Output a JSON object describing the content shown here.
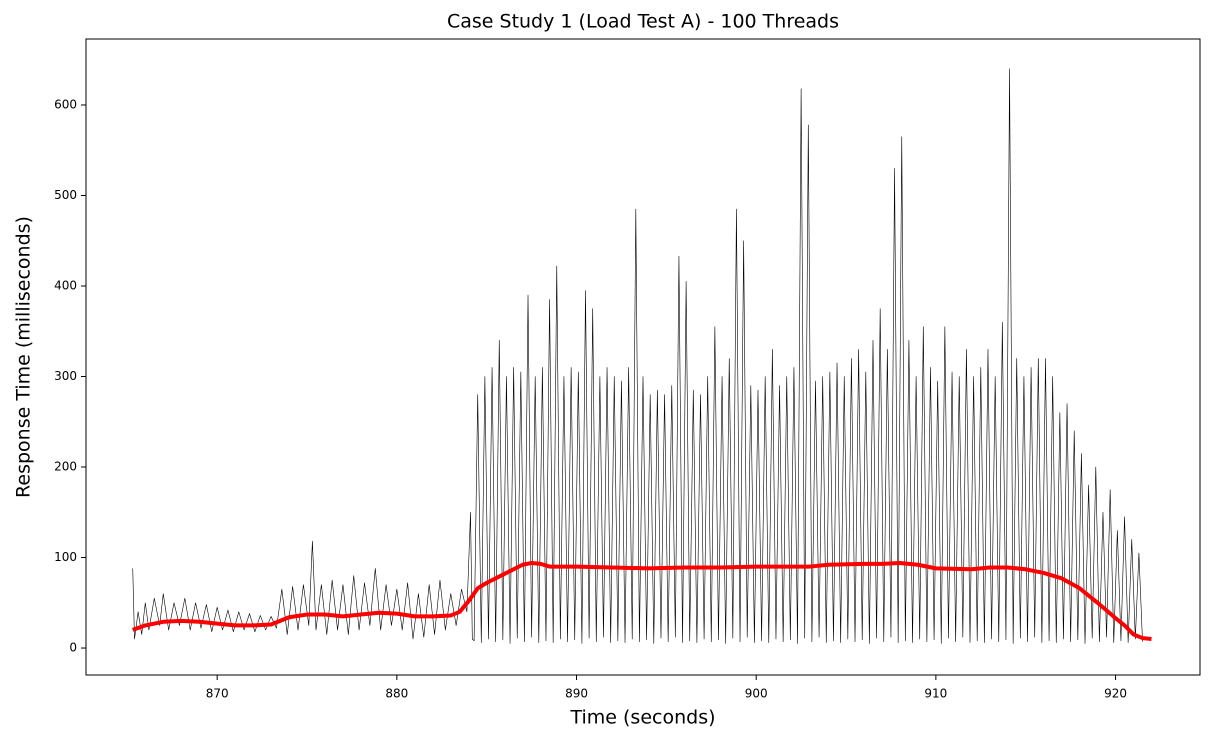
{
  "chart_data": {
    "type": "line",
    "title": "Case Study 1 (Load Test A) - 100 Threads",
    "xlabel": "Time (seconds)",
    "ylabel": "Response Time (milliseconds)",
    "xlim": [
      862.7,
      924.7
    ],
    "ylim": [
      -29.8,
      672.9
    ],
    "xticks": [
      870,
      880,
      890,
      900,
      910,
      920
    ],
    "yticks": [
      0,
      100,
      200,
      300,
      400,
      500,
      600
    ],
    "series": [
      {
        "color": "#000000",
        "x": [
          865.3,
          865.4,
          865.6,
          865.8,
          866.0,
          866.2,
          866.5,
          866.8,
          867.0,
          867.3,
          867.6,
          867.9,
          868.2,
          868.5,
          868.8,
          869.1,
          869.4,
          869.7,
          870.0,
          870.3,
          870.6,
          870.9,
          871.2,
          871.5,
          871.8,
          872.1,
          872.4,
          872.7,
          873.0,
          873.3,
          873.6,
          873.9,
          874.2,
          874.5,
          874.8,
          875.1,
          875.3,
          875.5,
          875.8,
          876.1,
          876.4,
          876.7,
          877.0,
          877.3,
          877.6,
          877.9,
          878.2,
          878.5,
          878.8,
          879.1,
          879.4,
          879.7,
          880.0,
          880.3,
          880.6,
          880.9,
          881.2,
          881.5,
          881.8,
          882.1,
          882.4,
          882.7,
          883.0,
          883.3,
          883.6,
          883.9,
          884.1,
          884.2,
          884.3,
          884.5,
          884.7,
          884.9,
          885.1,
          885.3,
          885.5,
          885.7,
          885.9,
          886.1,
          886.3,
          886.5,
          886.7,
          886.9,
          887.1,
          887.3,
          887.5,
          887.7,
          887.9,
          888.1,
          888.3,
          888.5,
          888.7,
          888.9,
          889.1,
          889.3,
          889.5,
          889.7,
          889.9,
          890.1,
          890.3,
          890.5,
          890.7,
          890.9,
          891.1,
          891.3,
          891.5,
          891.7,
          891.9,
          892.1,
          892.3,
          892.5,
          892.7,
          892.9,
          893.1,
          893.3,
          893.5,
          893.7,
          893.9,
          894.1,
          894.3,
          894.5,
          894.7,
          894.9,
          895.1,
          895.3,
          895.5,
          895.7,
          895.9,
          896.1,
          896.3,
          896.5,
          896.7,
          896.9,
          897.1,
          897.3,
          897.5,
          897.7,
          897.9,
          898.1,
          898.3,
          898.5,
          898.7,
          898.9,
          899.1,
          899.3,
          899.5,
          899.7,
          899.9,
          900.1,
          900.3,
          900.5,
          900.7,
          900.9,
          901.1,
          901.3,
          901.5,
          901.7,
          901.9,
          902.1,
          902.3,
          902.5,
          902.7,
          902.9,
          903.1,
          903.3,
          903.5,
          903.7,
          903.9,
          904.1,
          904.3,
          904.5,
          904.7,
          904.9,
          905.1,
          905.3,
          905.5,
          905.7,
          905.9,
          906.1,
          906.3,
          906.5,
          906.7,
          906.9,
          907.1,
          907.3,
          907.5,
          907.7,
          907.9,
          908.1,
          908.3,
          908.5,
          908.7,
          908.9,
          909.1,
          909.3,
          909.5,
          909.7,
          909.9,
          910.1,
          910.3,
          910.5,
          910.7,
          910.9,
          911.1,
          911.3,
          911.5,
          911.7,
          911.9,
          912.1,
          912.3,
          912.5,
          912.7,
          912.9,
          913.1,
          913.3,
          913.5,
          913.7,
          913.9,
          914.1,
          914.3,
          914.5,
          914.7,
          914.9,
          915.1,
          915.3,
          915.5,
          915.7,
          915.9,
          916.1,
          916.3,
          916.5,
          916.7,
          916.9,
          917.1,
          917.3,
          917.5,
          917.7,
          917.9,
          918.1,
          918.3,
          918.5,
          918.7,
          918.9,
          919.1,
          919.3,
          919.5,
          919.7,
          919.9,
          920.1,
          920.3,
          920.5,
          920.7,
          920.9,
          921.1,
          921.3,
          921.5
        ],
        "values": [
          88,
          10,
          40,
          15,
          50,
          20,
          55,
          25,
          60,
          20,
          50,
          25,
          55,
          20,
          50,
          22,
          48,
          18,
          45,
          20,
          42,
          18,
          40,
          20,
          38,
          18,
          36,
          20,
          35,
          22,
          65,
          15,
          68,
          20,
          70,
          25,
          118,
          20,
          70,
          15,
          75,
          20,
          70,
          15,
          80,
          20,
          72,
          25,
          88,
          20,
          70,
          25,
          65,
          20,
          72,
          10,
          60,
          12,
          70,
          15,
          75,
          20,
          60,
          25,
          65,
          40,
          150,
          10,
          8,
          280,
          6,
          300,
          10,
          310,
          7,
          340,
          9,
          300,
          5,
          310,
          11,
          305,
          7,
          390,
          12,
          300,
          6,
          310,
          8,
          385,
          6,
          422,
          10,
          300,
          7,
          310,
          9,
          305,
          5,
          395,
          11,
          375,
          7,
          300,
          12,
          310,
          6,
          300,
          8,
          295,
          6,
          310,
          10,
          485,
          7,
          300,
          9,
          280,
          5,
          285,
          11,
          280,
          7,
          290,
          12,
          433,
          6,
          405,
          8,
          285,
          6,
          280,
          10,
          300,
          7,
          355,
          9,
          300,
          5,
          320,
          11,
          485,
          7,
          450,
          12,
          290,
          6,
          285,
          8,
          300,
          6,
          330,
          10,
          290,
          7,
          300,
          9,
          310,
          5,
          618,
          11,
          578,
          7,
          295,
          12,
          300,
          6,
          305,
          8,
          315,
          6,
          300,
          10,
          320,
          7,
          330,
          9,
          305,
          5,
          340,
          11,
          375,
          7,
          330,
          12,
          530,
          6,
          565,
          8,
          340,
          6,
          300,
          10,
          355,
          7,
          310,
          9,
          295,
          5,
          355,
          11,
          305,
          7,
          300,
          12,
          330,
          6,
          300,
          8,
          310,
          6,
          330,
          10,
          300,
          7,
          360,
          9,
          640,
          5,
          320,
          11,
          300,
          7,
          310,
          12,
          320,
          6,
          320,
          8,
          300,
          6,
          260,
          10,
          270,
          7,
          240,
          9,
          215,
          5,
          180,
          11,
          200,
          7,
          150,
          12,
          175,
          6,
          130,
          8,
          145,
          6,
          120,
          10,
          105,
          7
        ],
        "width": 0.6
      },
      {
        "color": "#ff0000",
        "x": [
          865.3,
          866,
          867,
          868,
          869,
          870,
          871,
          872,
          873,
          874,
          875,
          876,
          877,
          878,
          879,
          880,
          881,
          882,
          883,
          883.5,
          884,
          884.5,
          885,
          886,
          887,
          887.5,
          888,
          888.5,
          889,
          890,
          892,
          894,
          896,
          898,
          900,
          902,
          903,
          904,
          906,
          907,
          908,
          909,
          910,
          912,
          913,
          914,
          915,
          916,
          917,
          918,
          919,
          920,
          920.5,
          921,
          921.5,
          922
        ],
        "values": [
          20,
          25,
          29,
          30,
          29,
          27,
          25,
          25,
          26,
          34,
          37,
          37,
          35,
          37,
          39,
          38,
          35,
          35,
          36,
          40,
          52,
          66,
          72,
          82,
          92,
          94,
          93,
          90,
          90,
          90,
          89,
          88,
          89,
          89,
          90,
          90,
          90,
          92,
          93,
          93,
          94,
          92,
          88,
          87,
          89,
          89,
          87,
          83,
          77,
          66,
          50,
          33,
          25,
          15,
          11,
          10
        ],
        "width": 4
      }
    ]
  }
}
